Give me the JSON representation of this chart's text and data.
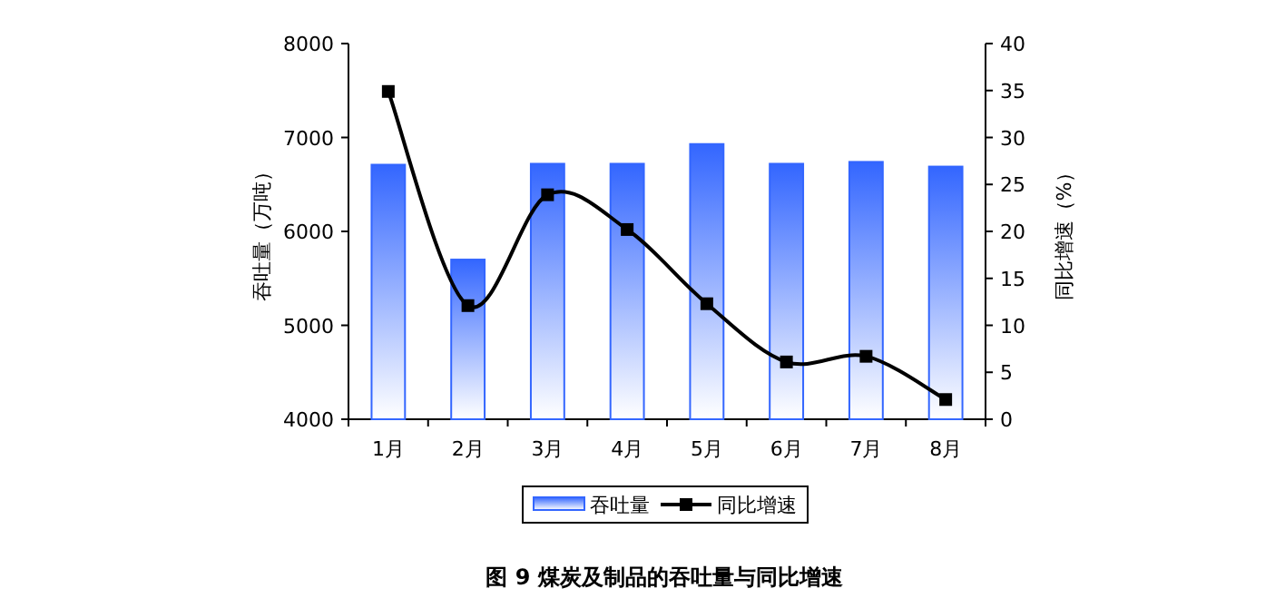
{
  "chart_data": {
    "type": "bar",
    "title": "图 9 煤炭及制品的吞吐量与同比增速",
    "categories": [
      "1月",
      "2月",
      "3月",
      "4月",
      "5月",
      "6月",
      "7月",
      "8月"
    ],
    "series": [
      {
        "name": "吞吐量",
        "color": "#3366ff",
        "values": [
          6710,
          5700,
          6720,
          6720,
          6930,
          6720,
          6740,
          6690
        ]
      },
      {
        "name": "同比增速",
        "type": "line",
        "axis": "y2",
        "color": "#000000",
        "marker": "square",
        "values": [
          34.9,
          12.1,
          23.9,
          20.2,
          12.3,
          6.1,
          6.7,
          2.1
        ]
      }
    ],
    "ylabel": "吞吐量（万吨）",
    "y2label": "同比增速（%）",
    "ylim": [
      4000,
      8000
    ],
    "yticks": [
      4000,
      5000,
      6000,
      7000,
      8000
    ],
    "y2lim": [
      0,
      40
    ],
    "y2ticks": [
      0,
      5,
      10,
      15,
      20,
      25,
      30,
      35,
      40
    ],
    "legend": "bottom",
    "grid": false
  }
}
